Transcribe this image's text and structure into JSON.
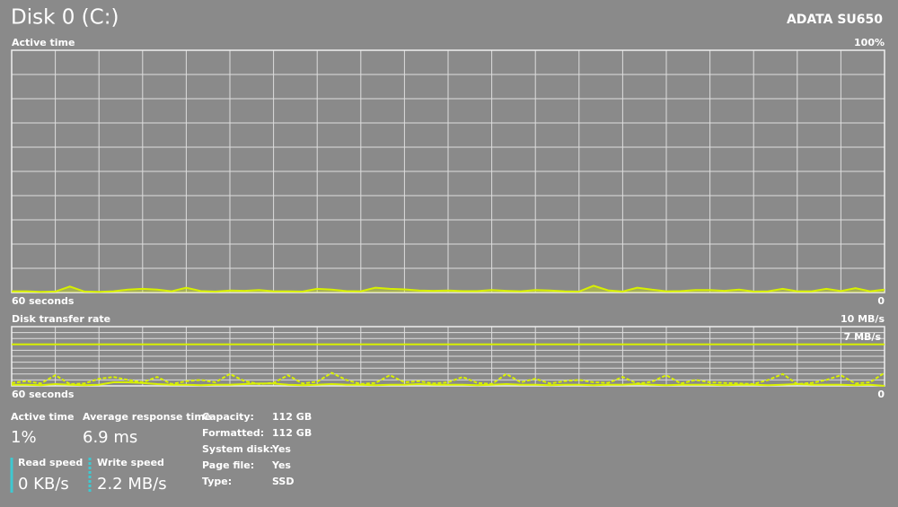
{
  "header": {
    "title": "Disk 0 (C:)",
    "model": "ADATA SU650"
  },
  "chart_data": [
    {
      "type": "area",
      "title": "Active time",
      "x_label": "60 seconds",
      "color": "#d8f000",
      "grid": true,
      "grid_columns": 20,
      "grid_rows": 10,
      "ylim": [
        0,
        100
      ],
      "yticks": [
        0,
        {
          "value": 100,
          "label": "100%"
        }
      ],
      "series": [
        {
          "values": [
            0.5,
            0.5,
            0.3,
            0.4,
            2.5,
            0.4,
            0.3,
            0.5,
            1.2,
            1.5,
            1.2,
            0.5,
            2.0,
            0.6,
            0.4,
            0.8,
            0.7,
            1.0,
            0.5,
            0.5,
            0.4,
            1.5,
            1.2,
            0.6,
            0.5,
            2.0,
            1.5,
            1.3,
            0.8,
            0.7,
            0.8,
            0.6,
            0.6,
            1.0,
            0.7,
            0.5,
            1.0,
            0.8,
            0.5,
            0.4,
            2.8,
            0.9,
            0.4,
            2.0,
            1.2,
            0.5,
            0.6,
            1.0,
            1.0,
            0.7,
            1.2,
            0.4,
            0.5,
            1.5,
            0.5,
            0.5,
            1.5,
            0.6,
            1.8,
            0.5,
            1.2
          ]
        }
      ]
    },
    {
      "type": "line",
      "title": "Disk transfer rate",
      "x_label": "60 seconds",
      "grid": true,
      "grid_columns": 20,
      "grid_rows": 10,
      "ylim": [
        0,
        10
      ],
      "yticks": [
        0,
        {
          "value": 10,
          "label": "10 MB/s"
        }
      ],
      "reference": {
        "value": 7,
        "label": "7 MB/s",
        "color": "#d8f000"
      },
      "series": [
        {
          "name": "Read speed",
          "color": "#d8f000",
          "style": "solid",
          "values": [
            0.2,
            0.2,
            0.1,
            0.3,
            0.2,
            0.1,
            0.2,
            0.6,
            0.6,
            0.5,
            0.3,
            0.2,
            0.2,
            0.1,
            0.2,
            0.2,
            0.3,
            0.4,
            0.4,
            0.2,
            0.1,
            0.2,
            0.3,
            0.2,
            0.2,
            0.1,
            0.2,
            0.2,
            0.3,
            0.2,
            0.2,
            0.2,
            0.1,
            0.2,
            0.3,
            0.2,
            0.2,
            0.1,
            0.2,
            0.2,
            0.1,
            0.2,
            0.2,
            0.3,
            0.2,
            0.1,
            0.2,
            0.2,
            0.2,
            0.1,
            0.2,
            0.2,
            0.1,
            0.2,
            0.3,
            0.2,
            0.2,
            0.2,
            0.1,
            0.2,
            0.0
          ]
        },
        {
          "name": "Write speed",
          "color": "#d8f000",
          "style": "dotted",
          "values": [
            0.5,
            0.8,
            0.4,
            1.8,
            0.3,
            0.4,
            1.2,
            1.5,
            1.0,
            0.6,
            1.5,
            0.3,
            0.8,
            1.0,
            0.6,
            2.0,
            0.8,
            0.3,
            0.5,
            1.8,
            0.4,
            0.7,
            2.2,
            1.0,
            0.3,
            0.5,
            1.8,
            0.6,
            0.8,
            0.4,
            0.6,
            1.5,
            0.5,
            0.3,
            2.0,
            0.6,
            1.2,
            0.4,
            0.8,
            1.0,
            0.6,
            0.5,
            1.5,
            0.4,
            0.7,
            1.8,
            0.4,
            1.0,
            0.6,
            0.5,
            0.4,
            0.3,
            1.0,
            2.0,
            0.3,
            0.5,
            1.0,
            1.8,
            0.4,
            0.6,
            2.2
          ]
        }
      ]
    }
  ],
  "stats": {
    "active_time": {
      "label": "Active time",
      "value": "1%"
    },
    "response_time": {
      "label": "Average response time",
      "value": "6.9 ms"
    },
    "read_speed": {
      "value": "0 KB/s"
    },
    "write_speed": {
      "value": "2.2 MB/s"
    }
  },
  "properties": [
    {
      "label": "Capacity:",
      "value": "112 GB"
    },
    {
      "label": "Formatted:",
      "value": "112 GB"
    },
    {
      "label": "System disk:",
      "value": "Yes"
    },
    {
      "label": "Page file:",
      "value": "Yes"
    },
    {
      "label": "Type:",
      "value": "SSD"
    }
  ]
}
